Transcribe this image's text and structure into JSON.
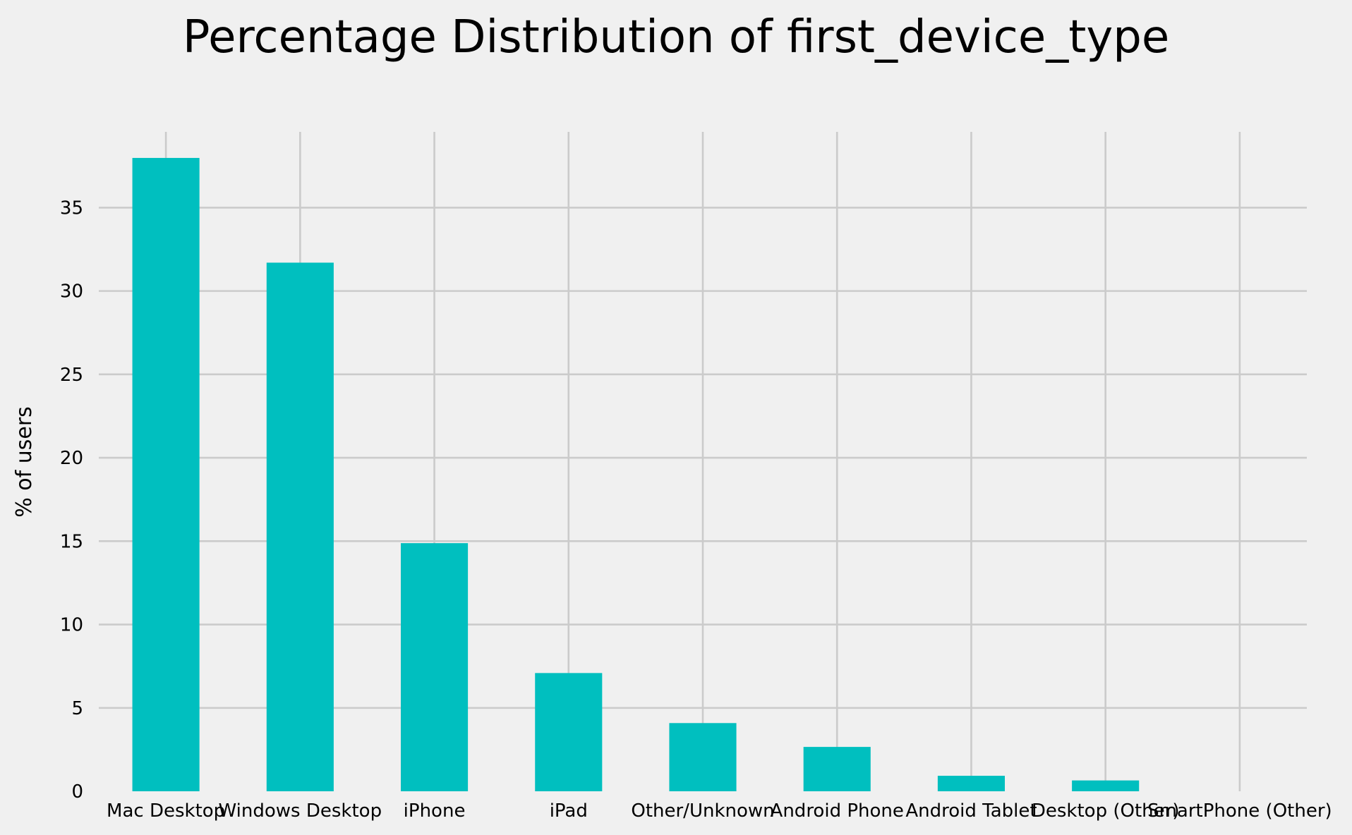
{
  "chart_data": {
    "type": "bar",
    "title": "Percentage Distribution of first_device_type",
    "xlabel": "",
    "ylabel": "% of users",
    "categories": [
      "Mac Desktop",
      "Windows Desktop",
      "iPhone",
      "iPad",
      "Other/Unknown",
      "Android Phone",
      "Android Tablet",
      "Desktop (Other)",
      "SmartPhone (Other)"
    ],
    "values": [
      37.98,
      31.7,
      14.88,
      7.09,
      4.09,
      2.66,
      0.93,
      0.65,
      0.0
    ],
    "ylim": [
      0,
      39.5
    ],
    "yticks": [
      0,
      5,
      10,
      15,
      20,
      25,
      30,
      35
    ],
    "ytick_labels": [
      "0",
      "5",
      "10",
      "15",
      "20",
      "25",
      "30",
      "35"
    ],
    "grid": true,
    "bar_color": "#00bfbf",
    "background_color": "#f0f0f0",
    "grid_color": "#cbcbcb"
  }
}
